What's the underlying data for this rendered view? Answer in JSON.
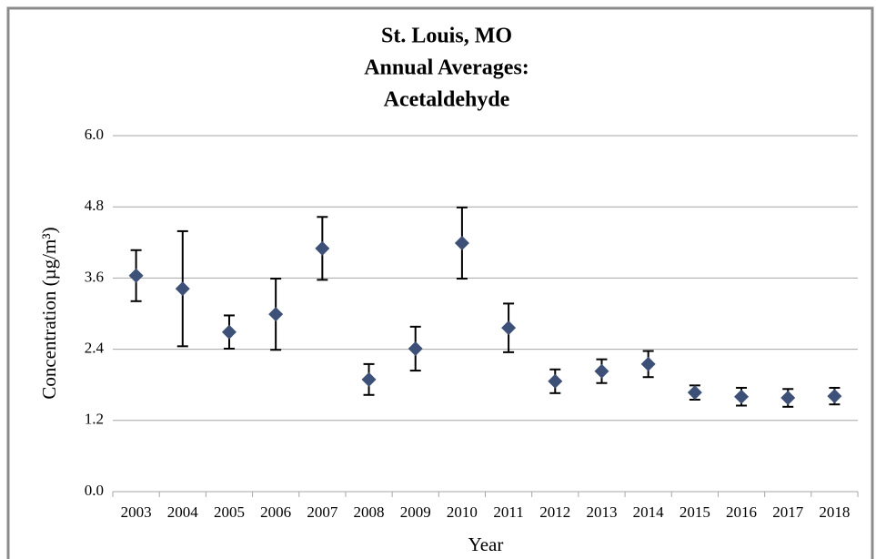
{
  "chart_data": {
    "type": "errorbar",
    "title": [
      "St. Louis, MO",
      "Annual Averages:",
      "Acetaldehyde"
    ],
    "x_label": "Year",
    "y_label": "Concentration (µg/m³)",
    "categories": [
      "2003",
      "2004",
      "2005",
      "2006",
      "2007",
      "2008",
      "2009",
      "2010",
      "2011",
      "2012",
      "2013",
      "2014",
      "2015",
      "2016",
      "2017",
      "2018"
    ],
    "values": [
      3.64,
      3.42,
      2.69,
      2.99,
      4.1,
      1.89,
      2.41,
      4.19,
      2.76,
      1.86,
      2.03,
      2.15,
      1.67,
      1.6,
      1.58,
      1.61
    ],
    "errors": [
      0.43,
      0.97,
      0.28,
      0.6,
      0.53,
      0.26,
      0.37,
      0.6,
      0.41,
      0.2,
      0.2,
      0.22,
      0.12,
      0.15,
      0.15,
      0.14
    ],
    "color": "#3d5077",
    "ylim": [
      0,
      6
    ],
    "yticks": [
      {
        "value": 0,
        "label": "0.0"
      },
      1.2,
      2.4,
      3.6,
      4.8,
      {
        "value": 6,
        "label": "6.0"
      }
    ],
    "grid": true
  }
}
